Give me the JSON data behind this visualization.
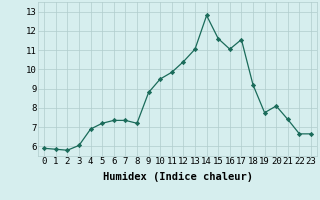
{
  "xlabel": "Humidex (Indice chaleur)",
  "x": [
    0,
    1,
    2,
    3,
    4,
    5,
    6,
    7,
    8,
    9,
    10,
    11,
    12,
    13,
    14,
    15,
    16,
    17,
    18,
    19,
    20,
    21,
    22,
    23
  ],
  "y": [
    5.9,
    5.85,
    5.8,
    6.05,
    6.9,
    7.2,
    7.35,
    7.35,
    7.2,
    8.8,
    9.5,
    9.85,
    10.4,
    11.05,
    12.8,
    11.6,
    11.05,
    11.55,
    9.2,
    7.75,
    8.1,
    7.4,
    6.65,
    6.65
  ],
  "ylim": [
    5.5,
    13.5
  ],
  "xlim": [
    -0.5,
    23.5
  ],
  "yticks": [
    6,
    7,
    8,
    9,
    10,
    11,
    12,
    13
  ],
  "xticks": [
    0,
    1,
    2,
    3,
    4,
    5,
    6,
    7,
    8,
    9,
    10,
    11,
    12,
    13,
    14,
    15,
    16,
    17,
    18,
    19,
    20,
    21,
    22,
    23
  ],
  "line_color": "#1a6b5a",
  "marker_color": "#1a6b5a",
  "bg_color": "#d6eeee",
  "grid_color": "#b0cccc",
  "tick_label_fontsize": 6.5,
  "xlabel_fontsize": 7.5
}
